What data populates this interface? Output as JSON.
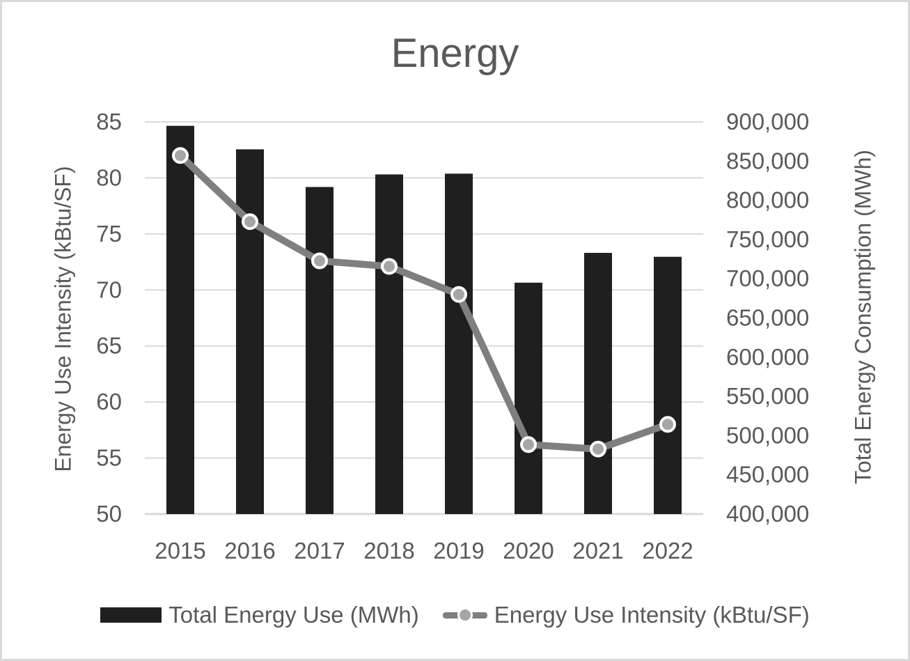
{
  "chart": {
    "title": "Energy",
    "left_axis": {
      "label": "Energy Use Intensity (kBtu/SF)",
      "tick_labels": [
        "50",
        "55",
        "60",
        "65",
        "70",
        "75",
        "80",
        "85"
      ]
    },
    "right_axis": {
      "label": "Total Energy Consumption (MWh)",
      "tick_labels": [
        "400,000",
        "450,000",
        "500,000",
        "550,000",
        "600,000",
        "650,000",
        "700,000",
        "750,000",
        "800,000",
        "850,000",
        "900,000"
      ]
    },
    "legend": {
      "bar_label": "Total Energy Use (MWh)",
      "line_label": "Energy Use Intensity (kBtu/SF)"
    },
    "colors": {
      "bar": "#1f1f1f",
      "line": "#7f7f7f",
      "marker_fill": "#a6a6a6",
      "marker_stroke": "#ffffff",
      "gridline": "#d9d9d9",
      "axis_line": "#d9d9d9",
      "text": "#595959",
      "frame_border": "#d9d9d9"
    }
  },
  "chart_data": {
    "type": "combo-bar-line",
    "title": "Energy",
    "categories": [
      "2015",
      "2016",
      "2017",
      "2018",
      "2019",
      "2020",
      "2021",
      "2022"
    ],
    "series": [
      {
        "name": "Total Energy Use (MWh)",
        "type": "bar",
        "axis": "right",
        "values": [
          895000,
          865000,
          817000,
          833000,
          834000,
          695000,
          733000,
          728000
        ]
      },
      {
        "name": "Energy Use Intensity (kBtu/SF)",
        "type": "line",
        "axis": "left",
        "values": [
          82.0,
          76.1,
          72.6,
          72.1,
          69.6,
          56.2,
          55.8,
          58.0
        ]
      }
    ],
    "left_ylabel": "Energy Use Intensity (kBtu/SF)",
    "right_ylabel": "Total Energy Consumption (MWh)",
    "left_ylim": [
      50,
      85
    ],
    "left_tick_step": 5,
    "right_ylim": [
      400000,
      900000
    ],
    "right_tick_step": 50000,
    "grid": true,
    "gridlines_follow": "left_axis",
    "legend_position": "bottom"
  }
}
